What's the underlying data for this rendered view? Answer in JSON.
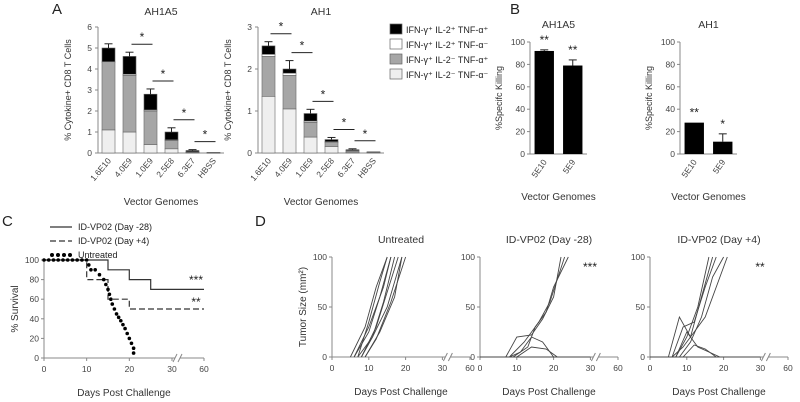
{
  "panel_letters": [
    "A",
    "B",
    "C",
    "D"
  ],
  "chart_data": [
    {
      "id": "A1",
      "type": "bar",
      "stacked": true,
      "title": "AH1A5",
      "ylabel": "% Cytokine+ CD8 T Cells",
      "xlabel": "Vector Genomes",
      "ylim": [
        0,
        6
      ],
      "yticks": [
        0,
        1,
        2,
        3,
        4,
        5,
        6
      ],
      "categories": [
        "1.6E10",
        "4.0E9",
        "1.0E9",
        "2.5E8",
        "6.3E7",
        "HBSS"
      ],
      "series": [
        {
          "name": "IFN-γ⁺ IL-2⁻ TNF-α⁻",
          "color": "#efefef",
          "values": [
            1.1,
            1.0,
            0.4,
            0.2,
            0.02,
            0.01
          ]
        },
        {
          "name": "IFN-γ⁺ IL-2⁻ TNF-α⁺",
          "color": "#a6a6a6",
          "values": [
            3.2,
            2.7,
            1.6,
            0.4,
            0.03,
            0.01
          ]
        },
        {
          "name": "IFN-γ⁺ IL-2⁺ TNF-α⁻",
          "color": "#ffffff",
          "values": [
            0.05,
            0.05,
            0.05,
            0.03,
            0.01,
            0.0
          ]
        },
        {
          "name": "IFN-γ⁺ IL-2⁺ TNF-α⁺",
          "color": "#000000",
          "values": [
            0.65,
            0.85,
            0.75,
            0.37,
            0.06,
            0.01
          ]
        }
      ],
      "errors": [
        0.2,
        0.2,
        0.25,
        0.2,
        0.04,
        0.0
      ],
      "significance": [
        {
          "x1": 1,
          "x2": 2,
          "label": "*"
        },
        {
          "x1": 2,
          "x2": 3,
          "label": "*"
        },
        {
          "x1": 3,
          "x2": 4,
          "label": "*"
        },
        {
          "x1": 4,
          "x2": 5,
          "label": "*"
        }
      ]
    },
    {
      "id": "A2",
      "type": "bar",
      "stacked": true,
      "title": "AH1",
      "ylabel": "% Cytokine+ CD8 T Cells",
      "xlabel": "Vector Genomes",
      "ylim": [
        0,
        3
      ],
      "yticks": [
        0,
        1,
        2,
        3
      ],
      "categories": [
        "1.6E10",
        "4.0E9",
        "1.0E9",
        "2.5E8",
        "6.3E7",
        "HBSS"
      ],
      "series": [
        {
          "name": "IFN-γ⁺ IL-2⁻ TNF-α⁻",
          "color": "#efefef",
          "values": [
            1.35,
            1.05,
            0.38,
            0.15,
            0.02,
            0.01
          ]
        },
        {
          "name": "IFN-γ⁺ IL-2⁻ TNF-α⁺",
          "color": "#a6a6a6",
          "values": [
            0.95,
            0.8,
            0.35,
            0.1,
            0.03,
            0.01
          ]
        },
        {
          "name": "IFN-γ⁺ IL-2⁺ TNF-α⁻",
          "color": "#ffffff",
          "values": [
            0.05,
            0.05,
            0.03,
            0.02,
            0.01,
            0.0
          ]
        },
        {
          "name": "IFN-γ⁺ IL-2⁺ TNF-α⁺",
          "color": "#000000",
          "values": [
            0.2,
            0.1,
            0.18,
            0.05,
            0.02,
            0.01
          ]
        }
      ],
      "errors": [
        0.1,
        0.2,
        0.1,
        0.05,
        0.02,
        0.0
      ],
      "significance": [
        {
          "x1": 0,
          "x2": 1,
          "label": "*"
        },
        {
          "x1": 1,
          "x2": 2,
          "label": "*"
        },
        {
          "x1": 2,
          "x2": 3,
          "label": "*"
        },
        {
          "x1": 3,
          "x2": 4,
          "label": "*"
        },
        {
          "x1": 4,
          "x2": 5,
          "label": "*"
        }
      ]
    },
    {
      "id": "B1",
      "type": "bar",
      "title": "AH1A5",
      "ylabel": "%Specifc Killing",
      "xlabel": "Vector Genomes",
      "ylim": [
        0,
        100
      ],
      "yticks": [
        0,
        20,
        40,
        60,
        80,
        100
      ],
      "categories": [
        "5E10",
        "5E9"
      ],
      "values": [
        92,
        79
      ],
      "errors": [
        1,
        5
      ],
      "annotations": [
        "**",
        "**"
      ]
    },
    {
      "id": "B2",
      "type": "bar",
      "title": "AH1",
      "ylabel": "%Specifc Killing",
      "xlabel": "Vector Genomes",
      "ylim": [
        0,
        100
      ],
      "yticks": [
        0,
        20,
        40,
        60,
        80,
        100
      ],
      "categories": [
        "5E10",
        "5E9"
      ],
      "values": [
        28,
        11
      ],
      "errors": [
        0,
        7
      ],
      "annotations": [
        "**",
        "*"
      ]
    },
    {
      "id": "C",
      "type": "line",
      "title": "",
      "ylabel": "% Survival",
      "xlabel": "Days Post Challenge",
      "ylim": [
        0,
        100
      ],
      "yticks": [
        0,
        20,
        40,
        60,
        80,
        100
      ],
      "xticks": [
        "0",
        "10",
        "20",
        "30",
        "60"
      ],
      "series": [
        {
          "name": "ID-VP02 (Day -28)",
          "style": "solid",
          "x": [
            0,
            15,
            15,
            20,
            20,
            25,
            25,
            60
          ],
          "y": [
            100,
            100,
            90,
            90,
            80,
            80,
            70,
            70
          ]
        },
        {
          "name": "ID-VP02 (Day +4)",
          "style": "dashed",
          "x": [
            0,
            10,
            10,
            15,
            15,
            20,
            20,
            60
          ],
          "y": [
            100,
            100,
            80,
            80,
            60,
            60,
            50,
            50
          ]
        },
        {
          "name": "Untreated",
          "style": "dotted",
          "x": [
            0,
            10,
            11,
            12,
            13,
            14,
            15,
            16,
            17,
            18,
            19,
            20,
            21,
            21
          ],
          "y": [
            100,
            100,
            90,
            90,
            85,
            80,
            70,
            55,
            45,
            38,
            30,
            20,
            10,
            0
          ]
        }
      ],
      "annotations": [
        "***",
        "**"
      ]
    },
    {
      "id": "D1",
      "type": "line",
      "title": "Untreated",
      "ylabel": "Tumor Size (mm²)",
      "xlabel": "Days Post Challenge",
      "ylim": [
        0,
        100
      ],
      "yticks": [
        0,
        50,
        100
      ],
      "xticks": [
        "0",
        "10",
        "20",
        "30",
        "60"
      ],
      "series": [
        {
          "x": [
            5,
            9,
            12,
            15
          ],
          "y": [
            0,
            30,
            70,
            100
          ]
        },
        {
          "x": [
            6,
            10,
            13,
            16
          ],
          "y": [
            0,
            25,
            60,
            100
          ]
        },
        {
          "x": [
            7,
            11,
            14,
            17
          ],
          "y": [
            0,
            20,
            55,
            100
          ]
        },
        {
          "x": [
            7,
            10,
            13,
            15
          ],
          "y": [
            0,
            35,
            75,
            100
          ]
        },
        {
          "x": [
            8,
            12,
            15,
            18
          ],
          "y": [
            0,
            30,
            65,
            100
          ]
        },
        {
          "x": [
            8,
            11,
            15,
            19
          ],
          "y": [
            0,
            20,
            50,
            100
          ]
        },
        {
          "x": [
            9,
            12,
            16,
            20
          ],
          "y": [
            0,
            18,
            55,
            100
          ]
        },
        {
          "x": [
            6,
            10,
            14,
            16
          ],
          "y": [
            0,
            30,
            70,
            100
          ]
        },
        {
          "x": [
            9,
            13,
            17,
            19
          ],
          "y": [
            0,
            25,
            60,
            100
          ]
        }
      ]
    },
    {
      "id": "D2",
      "type": "line",
      "title": "ID-VP02 (Day -28)",
      "ylabel": "",
      "xlabel": "Days Post Challenge",
      "ylim": [
        0,
        100
      ],
      "yticks": [
        0,
        50,
        100
      ],
      "xticks": [
        "0",
        "10",
        "20",
        "30",
        "60"
      ],
      "annotation": "***",
      "series": [
        {
          "x": [
            0,
            30
          ],
          "y": [
            0,
            0
          ]
        },
        {
          "x": [
            7,
            10,
            14,
            17,
            20,
            22
          ],
          "y": [
            0,
            20,
            22,
            38,
            60,
            100
          ]
        },
        {
          "x": [
            8,
            12,
            16,
            19,
            23
          ],
          "y": [
            0,
            15,
            35,
            55,
            100
          ]
        },
        {
          "x": [
            9,
            13,
            15,
            18,
            20,
            24
          ],
          "y": [
            0,
            10,
            30,
            45,
            70,
            100
          ]
        },
        {
          "x": [
            8,
            11,
            14,
            17,
            20
          ],
          "y": [
            0,
            5,
            20,
            15,
            0
          ]
        },
        {
          "x": [
            10,
            14,
            18,
            21
          ],
          "y": [
            0,
            10,
            8,
            0
          ]
        }
      ]
    },
    {
      "id": "D3",
      "type": "line",
      "title": "ID-VP02 (Day +4)",
      "ylabel": "",
      "xlabel": "Days Post Challenge",
      "ylim": [
        0,
        100
      ],
      "yticks": [
        0,
        50,
        100
      ],
      "xticks": [
        "0",
        "10",
        "20",
        "30",
        "60"
      ],
      "annotation": "**",
      "series": [
        {
          "x": [
            0,
            30
          ],
          "y": [
            0,
            0
          ]
        },
        {
          "x": [
            5,
            8,
            11,
            14,
            17
          ],
          "y": [
            0,
            40,
            20,
            60,
            100
          ]
        },
        {
          "x": [
            6,
            9,
            12,
            15,
            18
          ],
          "y": [
            0,
            30,
            35,
            70,
            100
          ]
        },
        {
          "x": [
            7,
            10,
            13,
            16
          ],
          "y": [
            0,
            20,
            50,
            100
          ]
        },
        {
          "x": [
            8,
            11,
            14,
            17,
            20
          ],
          "y": [
            0,
            15,
            40,
            80,
            100
          ]
        },
        {
          "x": [
            6,
            9,
            12,
            15,
            21
          ],
          "y": [
            0,
            10,
            25,
            40,
            100
          ]
        },
        {
          "x": [
            7,
            10,
            13,
            16,
            19
          ],
          "y": [
            0,
            25,
            10,
            5,
            0
          ]
        },
        {
          "x": [
            9,
            12,
            15,
            18
          ],
          "y": [
            0,
            12,
            8,
            0
          ]
        }
      ]
    }
  ],
  "legend_A": [
    {
      "label": "IFN-γ⁺ IL-2⁺ TNF-α⁺",
      "color": "#000000"
    },
    {
      "label": "IFN-γ⁺ IL-2⁺ TNF-α⁻",
      "color": "#ffffff"
    },
    {
      "label": "IFN-γ⁺ IL-2⁻ TNF-α⁺",
      "color": "#a6a6a6"
    },
    {
      "label": "IFN-γ⁺ IL-2⁻ TNF-α⁻",
      "color": "#efefef"
    }
  ]
}
